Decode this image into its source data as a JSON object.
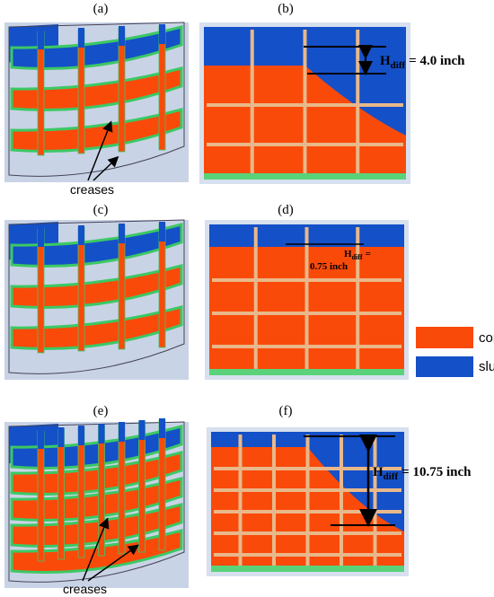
{
  "panels": [
    {
      "label": "(a)",
      "annotation": "creases"
    },
    {
      "label": "(b)",
      "annotation": {
        "symbol": "H",
        "subscript": "diff",
        "text": "= 4.0 inch"
      }
    },
    {
      "label": "(c)"
    },
    {
      "label": "(d)",
      "annotation": {
        "symbol": "H",
        "subscript": "diff",
        "text": "=",
        "line2": "0.75 inch"
      }
    },
    {
      "label": "(e)",
      "annotation": "creases"
    },
    {
      "label": "(f)",
      "annotation": {
        "symbol": "H",
        "subscript": "diff",
        "text": "= 10.75 inch"
      }
    }
  ],
  "legend": [
    {
      "label": "concrete",
      "color": "#fa4a0a"
    },
    {
      "label": "slurry",
      "color": "#1450c8"
    }
  ]
}
